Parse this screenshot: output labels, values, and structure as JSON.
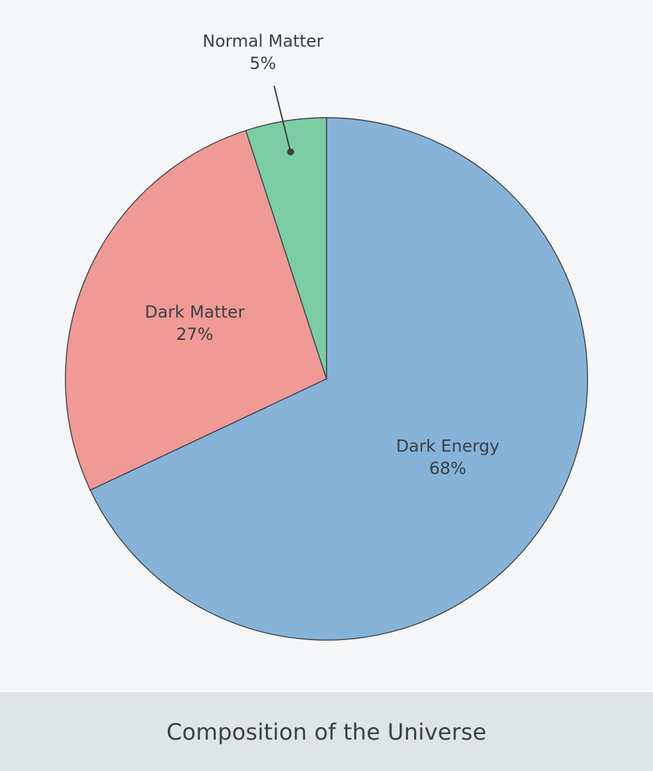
{
  "caption": "Composition of the Universe",
  "chart_data": {
    "type": "pie",
    "title": "Composition of the Universe",
    "slices": [
      {
        "label": "Dark Energy",
        "value": 68,
        "value_label": "68%",
        "color": "#87b3d9"
      },
      {
        "label": "Dark Matter",
        "value": 27,
        "value_label": "27%",
        "color": "#f09a96"
      },
      {
        "label": "Normal Matter",
        "value": 5,
        "value_label": "5%",
        "color": "#7dcda4"
      }
    ],
    "start_angle": "12 o'clock",
    "direction": "clockwise",
    "edge_color": "#3a3f44",
    "legend": "none"
  }
}
